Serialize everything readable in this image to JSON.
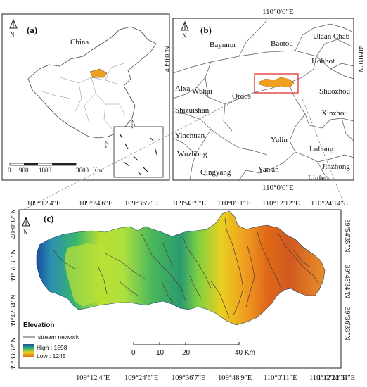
{
  "panel_a": {
    "label": "(a)",
    "country": "China",
    "north": "N",
    "scale": {
      "ticks": [
        "0",
        "900",
        "1800",
        "3600"
      ],
      "unit": "Km"
    }
  },
  "panel_b": {
    "label": "(b)",
    "north": "N",
    "top_coord": "110°0'0\"E",
    "bottom_coord": "110°0'0\"E",
    "left_coord": "40°0'0\"N",
    "right_coord": "40°0'0\"N",
    "cities": [
      "Baynnur",
      "Baotou",
      "Ulaan Chab",
      "Hohhot",
      "Alxa",
      "Wuhai",
      "Ordos",
      "Shuozhou",
      "Shizuishan",
      "Xinzhou",
      "Yinchuan",
      "Yulin",
      "Luliang",
      "Wuzhong",
      "Jinzhong",
      "Qingyang",
      "Yan'an",
      "Linfen"
    ]
  },
  "panel_c": {
    "label": "(c)",
    "north": "N",
    "top_ticks": [
      "109°12'4\"E",
      "109°24'6\"E",
      "109°36'7\"E",
      "109°48'9\"E",
      "110°0'11\"E",
      "110°12'12\"E",
      "110°24'14\"E"
    ],
    "bottom_ticks": [
      "109°12'4\"E",
      "109°24'6\"E",
      "109°36'7\"E",
      "109°48'9\"E",
      "110°0'11\"E",
      "110°12'12\"E",
      "110°24'14\"E"
    ],
    "left_ticks": [
      "40°0'37\"N",
      "39°51'35\"N",
      "39°42'34\"N",
      "39°33'32\"N"
    ],
    "right_ticks": [
      "39°54'35\"N",
      "39°45'34\"N",
      "39°36'33\"N"
    ],
    "legend": {
      "title": "Elevation",
      "stream": "stream network",
      "high": "High : 1598",
      "low": "Low : 1245"
    },
    "scale": {
      "ticks": [
        "0",
        "10",
        "20",
        "40"
      ],
      "unit": "Km"
    }
  },
  "colors": {
    "study_area": "#f0a020",
    "outline": "#444444",
    "highlight": "#e23030"
  }
}
